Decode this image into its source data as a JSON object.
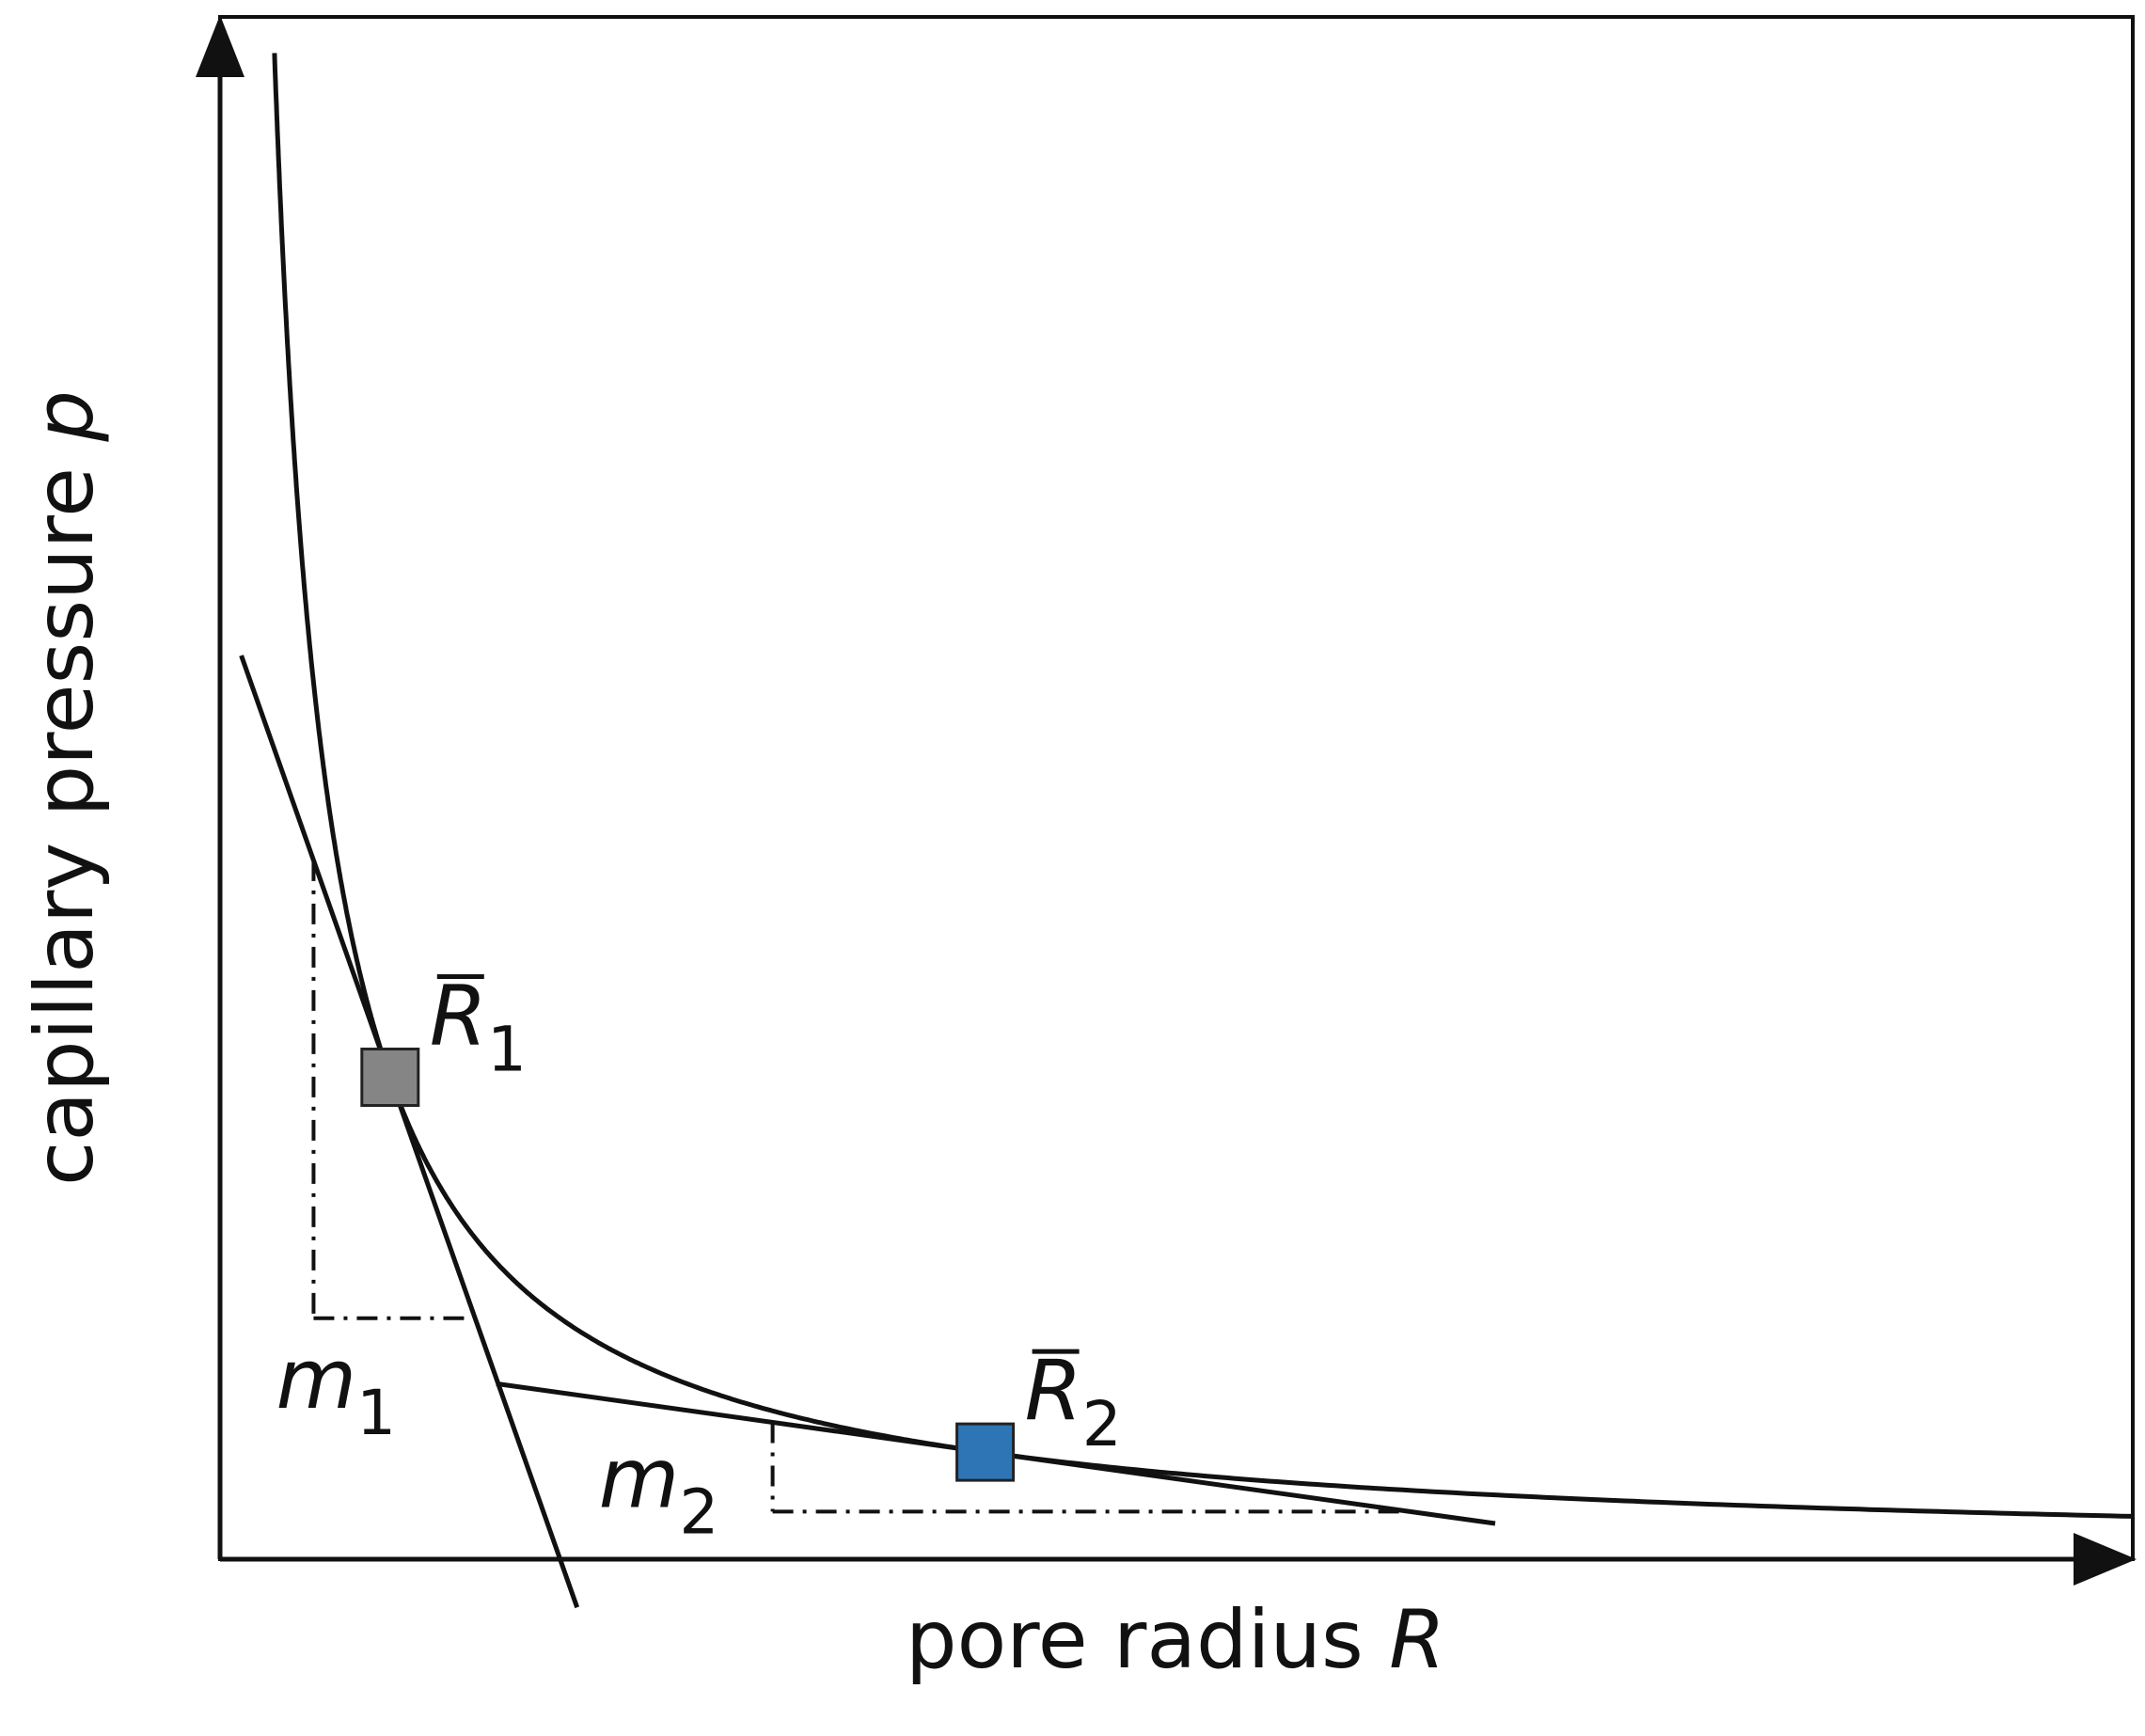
{
  "chart_data": {
    "type": "line",
    "axes": {
      "x_label_prefix": "pore radius ",
      "x_label_var": "R",
      "y_label_prefix": "capillary pressure ",
      "y_label_var": "p",
      "x_ticks": [],
      "y_ticks": [],
      "grid": false
    },
    "curve": {
      "description": "p = k / R",
      "k": 1.0,
      "x_range": [
        0.128,
        4.5
      ],
      "y_range_plot": [
        0,
        8.0
      ]
    },
    "points": [
      {
        "id": "R1",
        "label_var": "R",
        "label_sub": "1",
        "x": 0.4,
        "color": "#858585"
      },
      {
        "id": "R2",
        "label_var": "R",
        "label_sub": "2",
        "x": 1.8,
        "color": "#2e75b6"
      }
    ],
    "tangents": [
      {
        "id": "m1",
        "label_var": "m",
        "label_sub": "1",
        "at_x": 0.4,
        "x_from": 0.05,
        "x_to": 0.84
      },
      {
        "id": "m2",
        "label_var": "m",
        "label_sub": "2",
        "at_x": 1.8,
        "x_from": 0.65,
        "x_to": 3.0
      }
    ],
    "slope_triangles": [
      {
        "id": "m1",
        "x_left": 0.22,
        "x_right": 0.6
      },
      {
        "id": "m2",
        "x_left": 1.3,
        "x_right": 2.8
      }
    ]
  }
}
